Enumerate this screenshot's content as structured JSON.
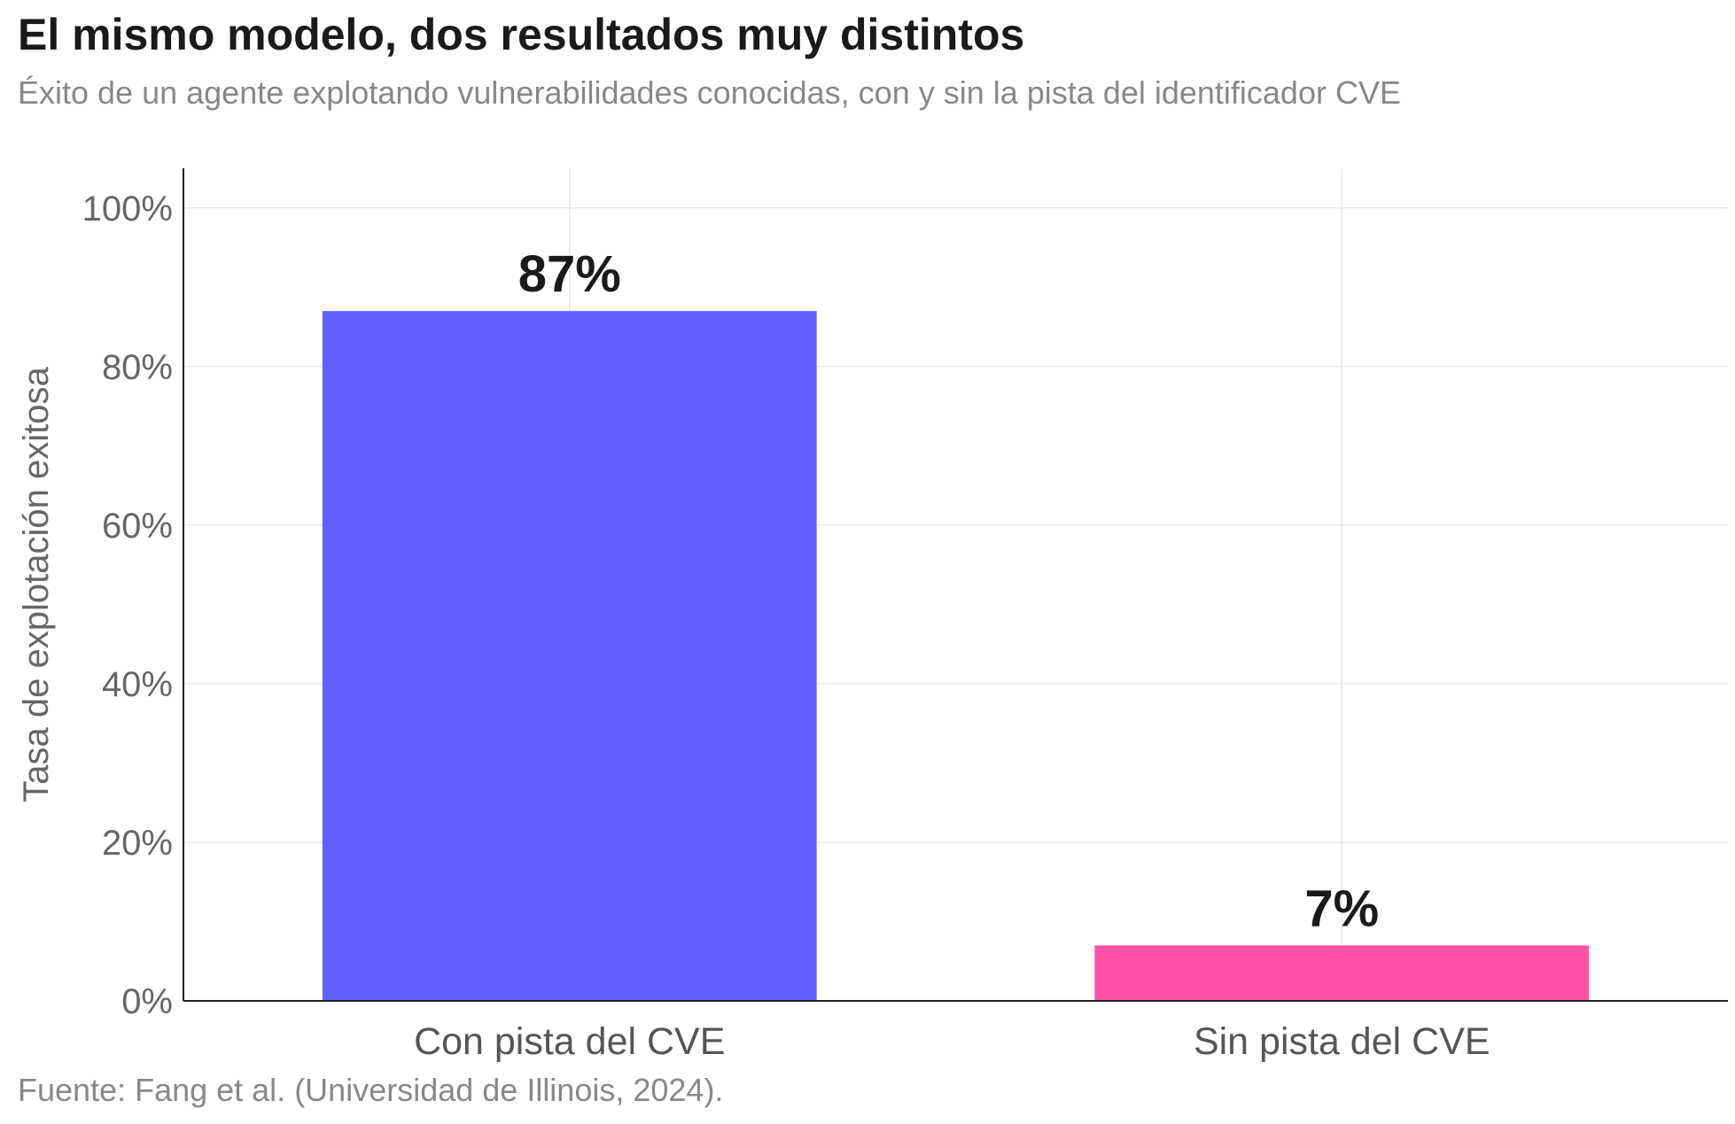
{
  "header": {
    "title": "El mismo modelo, dos resultados muy distintos",
    "subtitle": "Éxito de un agente explotando vulnerabilidades conocidas, con y sin la pista del identificador CVE"
  },
  "footer": {
    "source": "Fuente: Fang et al. (Universidad de Illinois, 2024)."
  },
  "chart_data": {
    "type": "bar",
    "title": "El mismo modelo, dos resultados muy distintos",
    "subtitle": "Éxito de un agente explotando vulnerabilidades conocidas, con y sin la pista del identificador CVE",
    "categories": [
      "Con pista del CVE",
      "Sin pista del CVE"
    ],
    "values": [
      87,
      7
    ],
    "data_labels": [
      "87%",
      "7%"
    ],
    "colors": [
      "#6161ff",
      "#fb51a9"
    ],
    "xlabel": "",
    "ylabel": "Tasa de explotación exitosa",
    "ylim": [
      0,
      105
    ],
    "yticks": [
      0,
      20,
      40,
      60,
      80,
      100
    ],
    "ytick_labels": [
      "0%",
      "20%",
      "40%",
      "60%",
      "80%",
      "100%"
    ],
    "grid": true,
    "legend": "none"
  }
}
